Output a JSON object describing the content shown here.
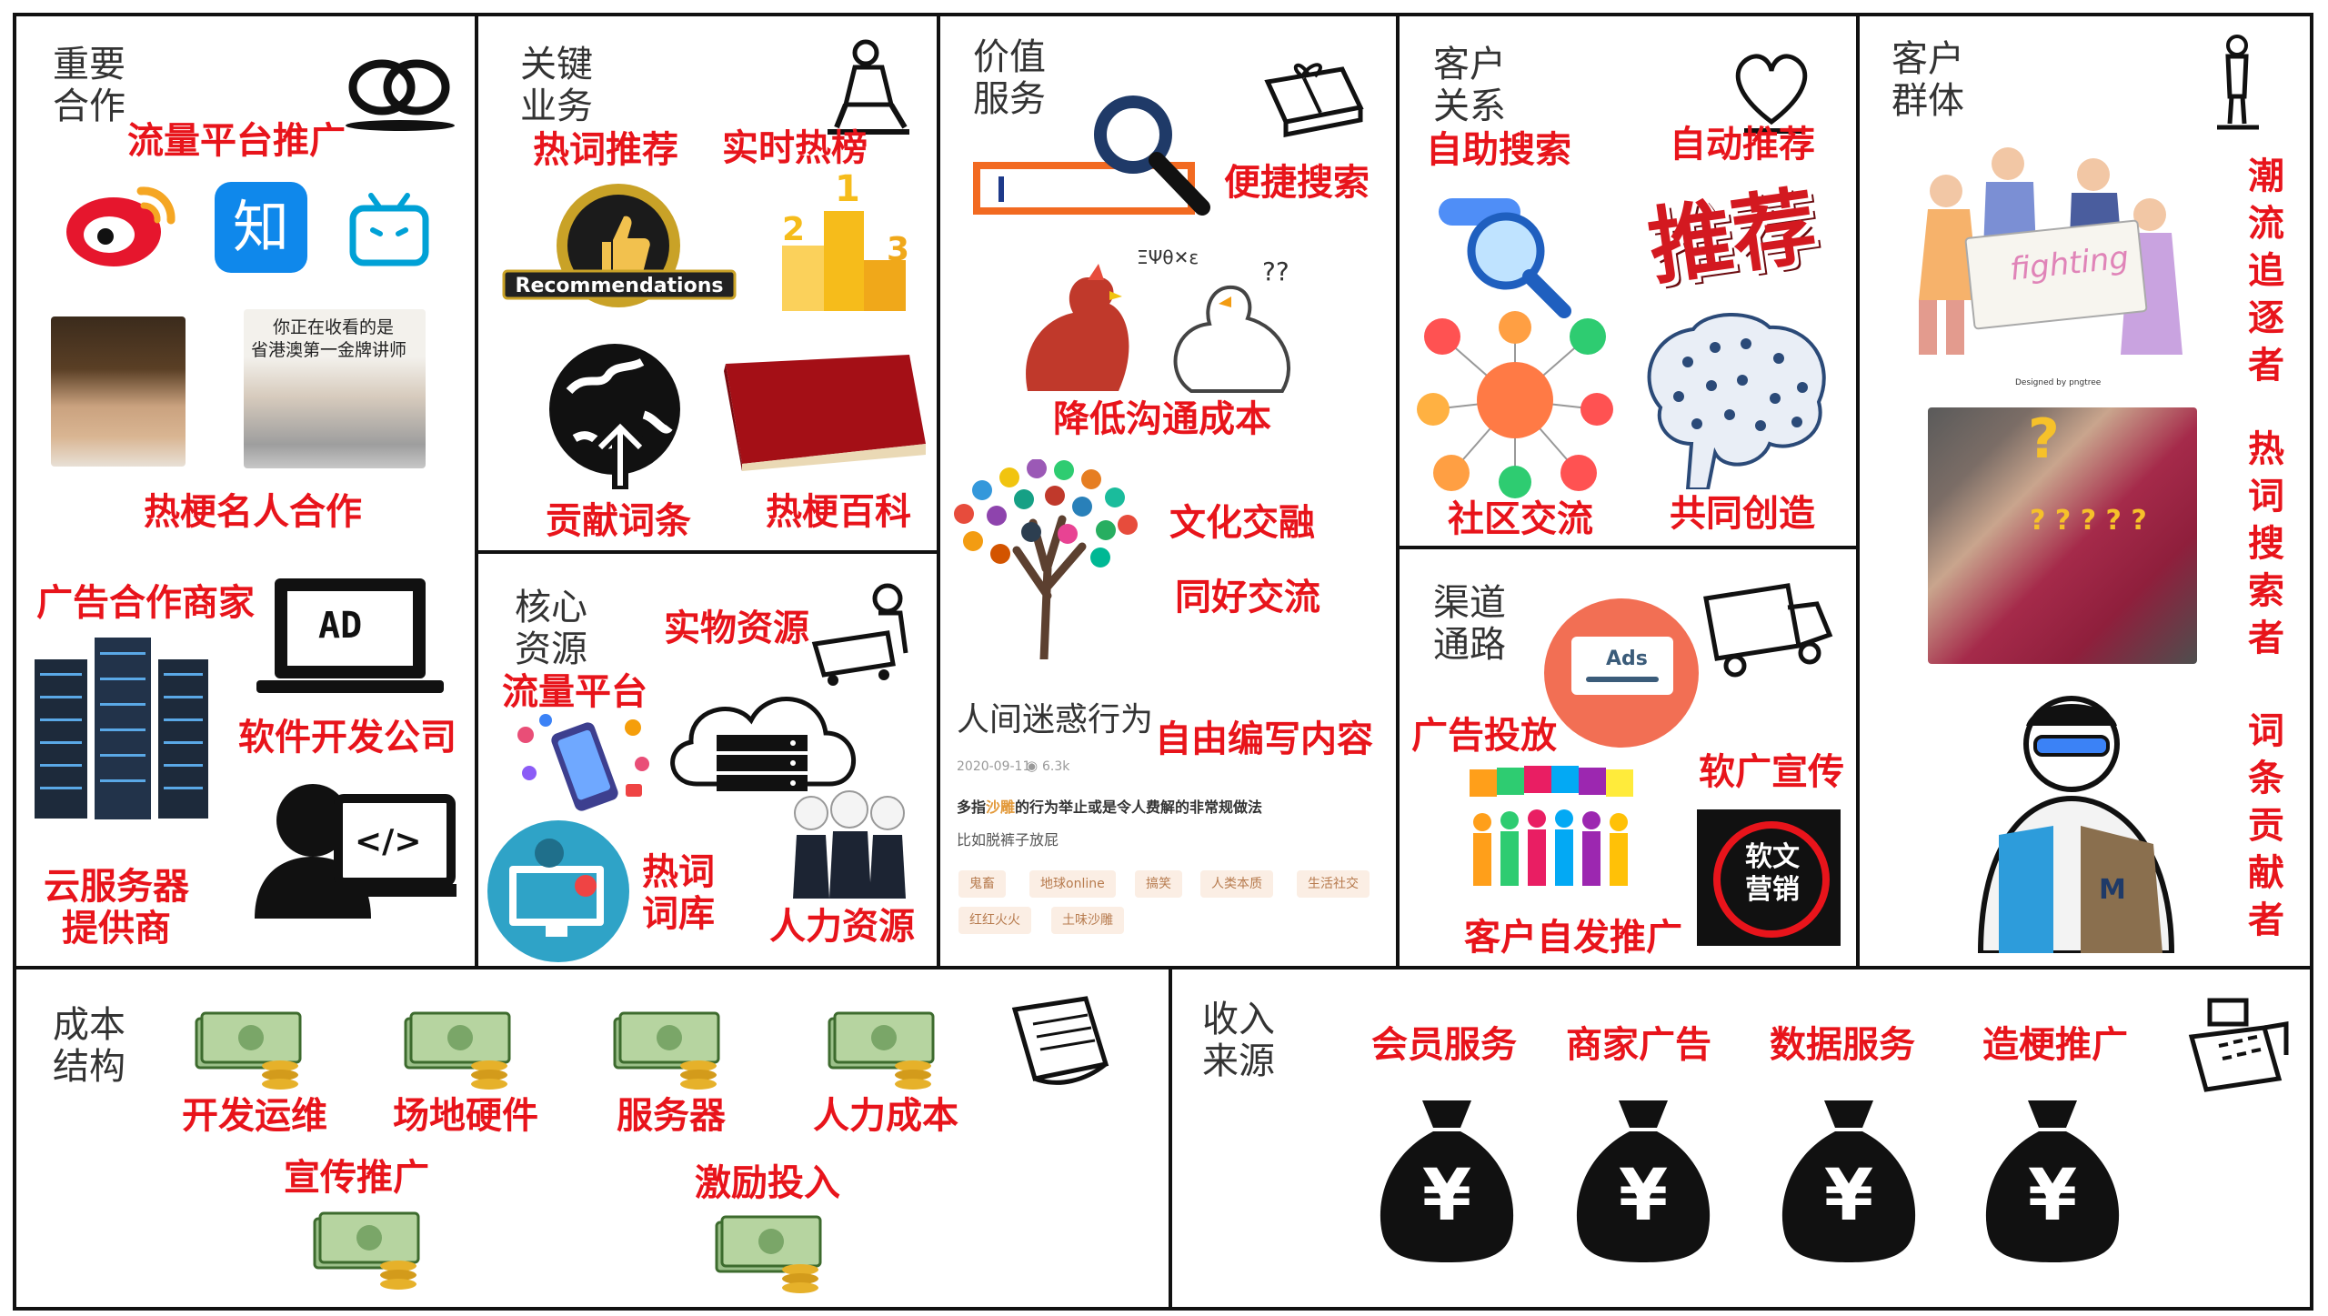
{
  "sections": {
    "partners": {
      "title": "重要\n合作",
      "labels": [
        "流量平台推广",
        "热梗名人合作",
        "广告合作商家",
        "软件开发公司",
        "云服务器",
        "提供商"
      ],
      "icons": {
        "weibo": "weibo-logo",
        "zhihu": "知",
        "bilibili": "bilibili-logo"
      },
      "photo_caption": [
        "你正在收看的是",
        "省港澳第一金牌讲师"
      ],
      "ad_label": "AD",
      "code_label": "</>"
    },
    "activities": {
      "title": "关键\n业务",
      "labels": [
        "热词推荐",
        "实时热榜",
        "贡献词条",
        "热梗百科"
      ],
      "badge": "Recommendations",
      "podium": [
        "1",
        "2",
        "3"
      ]
    },
    "resources": {
      "title": "核心\n资源",
      "labels": [
        "实物资源",
        "流量平台",
        "热词",
        "词库",
        "人力资源"
      ]
    },
    "value": {
      "title": "价值\n服务",
      "labels": [
        "便捷搜索",
        "降低沟通成本",
        "文化交融",
        "同好交流",
        "自由编写内容"
      ],
      "card": {
        "title": "人间迷惑行为",
        "date": "2020-09-11",
        "views": "6.3k",
        "desc_pre": "多指",
        "desc_highlight": "沙雕",
        "desc_post": "的行为举止或是令人费解的非常规做法",
        "example": "比如脱裤子放屁",
        "tags": [
          "鬼畜",
          "地球online",
          "搞笑",
          "人类本质",
          "生活社交",
          "红红火火",
          "土味沙雕"
        ]
      }
    },
    "relationships": {
      "title": "客户\n关系",
      "labels": [
        "自助搜索",
        "自动推荐",
        "社区交流",
        "共同创造"
      ],
      "recommend_art": "推荐"
    },
    "channels": {
      "title": "渠道\n通路",
      "labels": [
        "广告投放",
        "软广宣传",
        "客户自发推广"
      ],
      "ads_label": "Ads",
      "soft_badge": "软文\n营销"
    },
    "segments": {
      "title": "客户\n群体",
      "labels": [
        "潮流追逐者",
        "热词搜索者",
        "词条贡献者"
      ],
      "fighting": "fighting",
      "designed_by": "Designed by pngtree",
      "question_marks": "? ? ? ? ?"
    },
    "cost": {
      "title": "成本\n结构",
      "labels": [
        "开发运维",
        "场地硬件",
        "服务器",
        "人力成本",
        "宣传推广",
        "激励投入"
      ]
    },
    "revenue": {
      "title": "收入\n来源",
      "labels": [
        "会员服务",
        "商家广告",
        "数据服务",
        "造梗推广"
      ],
      "currency": "¥"
    }
  },
  "colors": {
    "accent_red": "#e8141b",
    "border": "#111111",
    "title_gray": "#333333"
  }
}
